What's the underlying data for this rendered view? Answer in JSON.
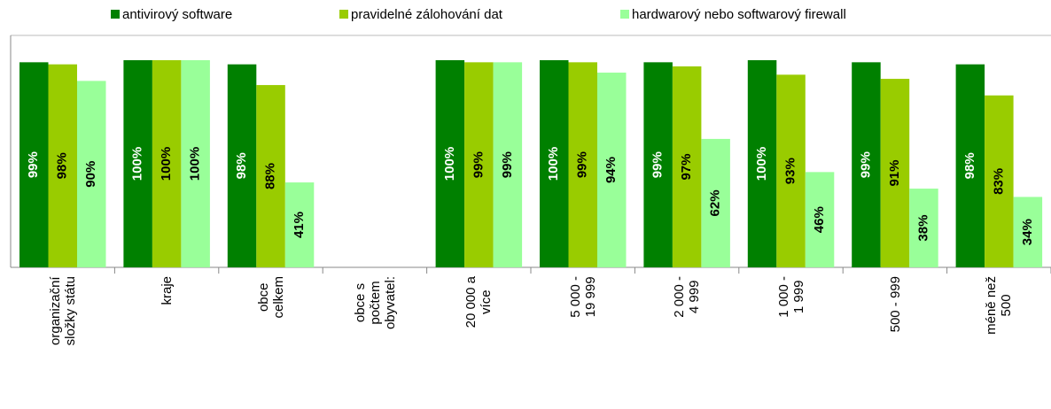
{
  "chart_data": {
    "type": "bar",
    "categories": [
      "organizační\nsložky státu",
      "kraje",
      "obce\ncelkem",
      "obce s\npočtem\nobyvatel:",
      "20 000 a\nvíce",
      "5 000 -\n19 999",
      "2 000 -\n4 999",
      "1 000 -\n1 999",
      "500 - 999",
      "méně než\n500"
    ],
    "series": [
      {
        "name": "antivirový software",
        "color": "#008000",
        "label_color": "#ffffff",
        "values": [
          99,
          100,
          98,
          null,
          100,
          100,
          99,
          100,
          99,
          98
        ],
        "value_labels": [
          "99%",
          "100%",
          "98%",
          null,
          "100%",
          "100%",
          "99%",
          "100%",
          "99%",
          "98%"
        ]
      },
      {
        "name": "pravidelné zálohování dat",
        "color": "#99cc00",
        "label_color": "#000000",
        "values": [
          98,
          100,
          88,
          null,
          99,
          99,
          97,
          93,
          91,
          83
        ],
        "value_labels": [
          "98%",
          "100%",
          "88%",
          null,
          "99%",
          "99%",
          "97%",
          "93%",
          "91%",
          "83%"
        ]
      },
      {
        "name": "hardwarový nebo softwarový firewall",
        "color": "#99ff99",
        "label_color": "#000000",
        "values": [
          90,
          100,
          41,
          null,
          99,
          94,
          62,
          46,
          38,
          34
        ],
        "value_labels": [
          "90%",
          "100%",
          "41%",
          null,
          "99%",
          "94%",
          "62%",
          "46%",
          "38%",
          "34%"
        ]
      }
    ],
    "ylim": [
      0,
      100
    ],
    "legend": "top"
  }
}
